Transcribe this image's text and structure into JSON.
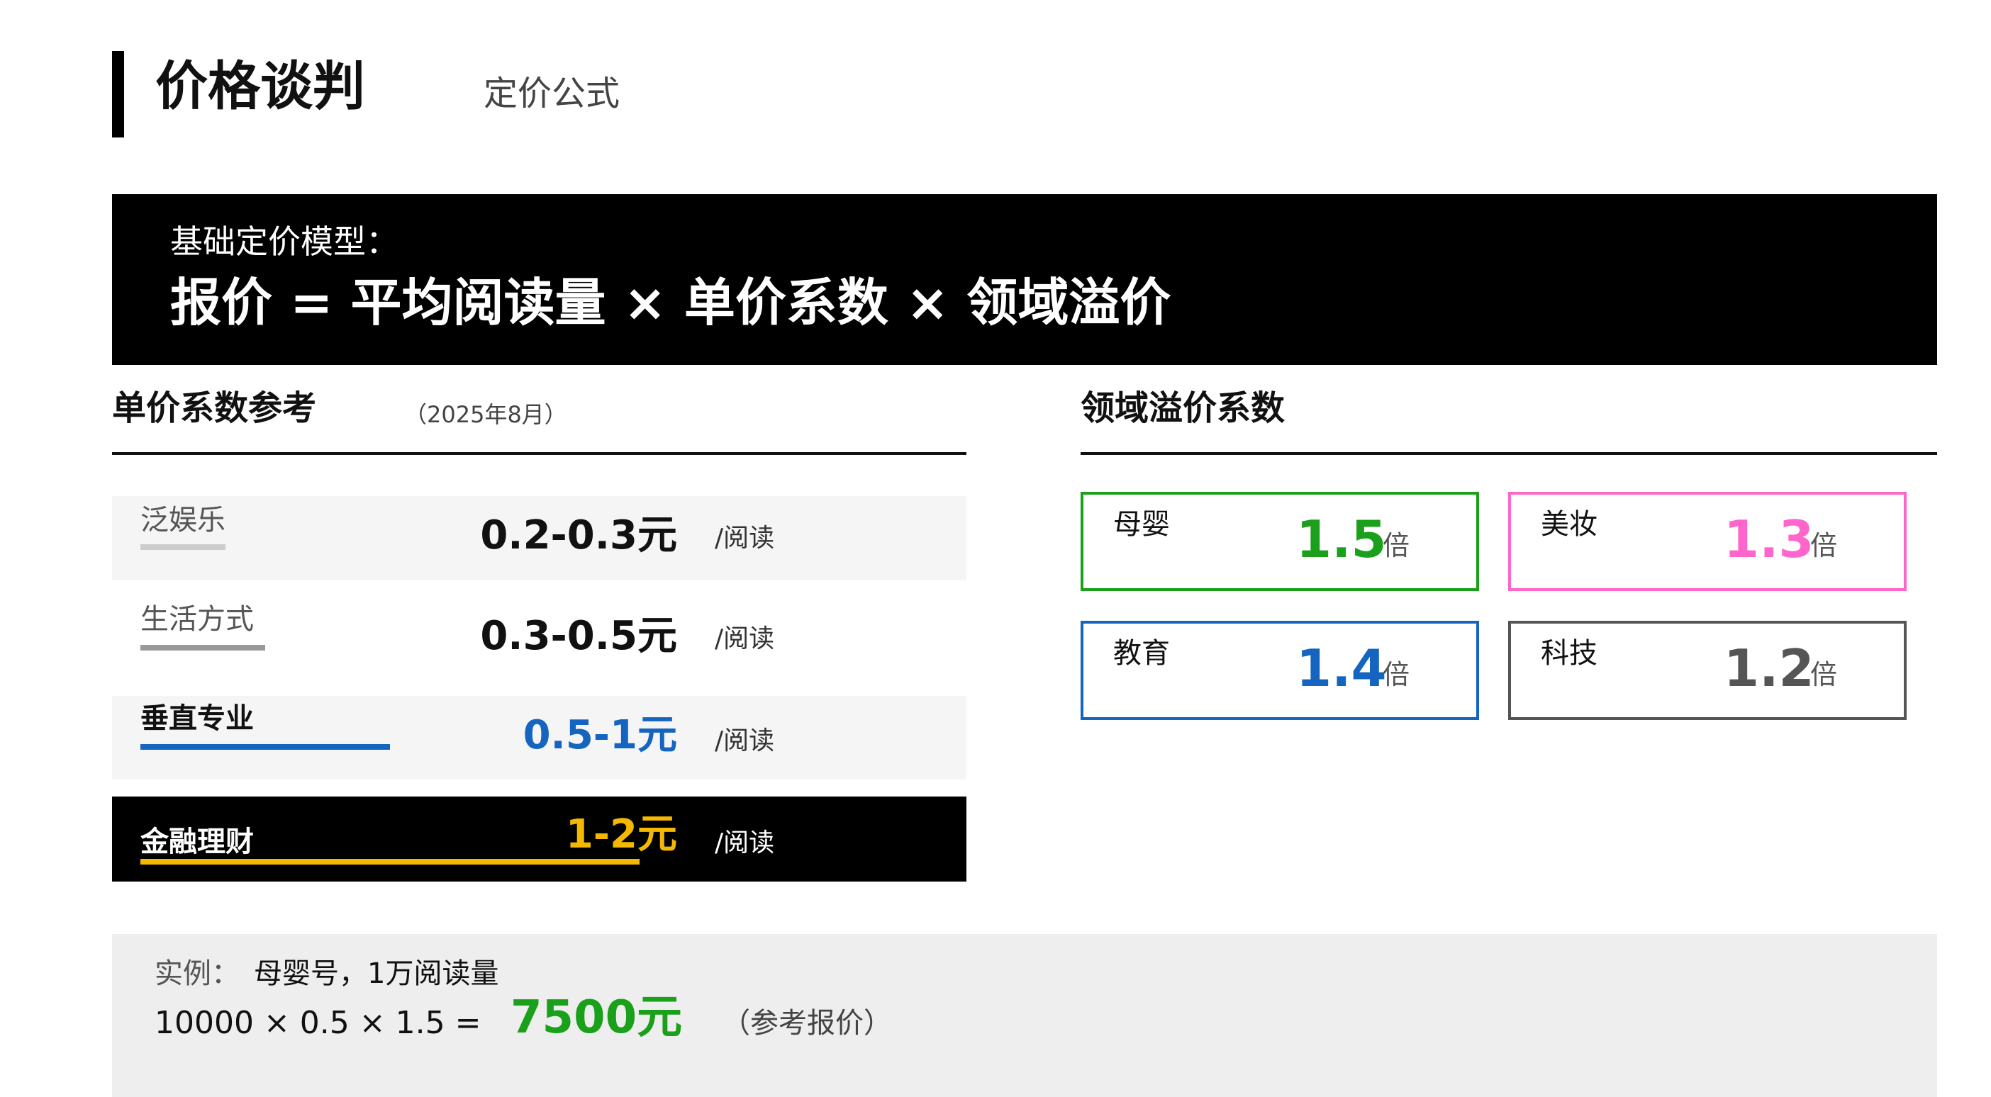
{
  "header": {
    "title": "价格谈判",
    "subtitle": "定价公式"
  },
  "formula": {
    "label": "基础定价模型：",
    "text": "报价 = 平均阅读量 × 单价系数 × 领域溢价"
  },
  "unit_price": {
    "title": "单价系数参考",
    "note": "（2025年8月）",
    "rows": [
      {
        "label": "泛娱乐",
        "price": "0.2-0.3元",
        "unit": "/阅读",
        "bar_color": "#cccccc",
        "bar_fraction": 0.17,
        "price_color": "#111111",
        "bg": "#f5f5f5",
        "label_color": "#555555"
      },
      {
        "label": "生活方式",
        "price": "0.3-0.5元",
        "unit": "/阅读",
        "bar_color": "#999999",
        "bar_fraction": 0.25,
        "price_color": "#111111",
        "bg": "#ffffff",
        "label_color": "#555555"
      },
      {
        "label": "垂直专业",
        "price": "0.5-1元",
        "unit": "/阅读",
        "bar_color": "#1565c0",
        "bar_fraction": 0.5,
        "price_color": "#1565c0",
        "bg": "#f5f5f5",
        "label_color": "#111111"
      },
      {
        "label": "金融理财",
        "price": "1-2元",
        "unit": "/阅读",
        "bar_color": "#f5b800",
        "bar_fraction": 1.0,
        "price_color": "#f5b800",
        "bg": "#000000",
        "label_color": "#ffffff"
      }
    ]
  },
  "premium": {
    "title": "领域溢价系数",
    "cards": [
      {
        "name": "母婴",
        "value": "1.5",
        "unit": "倍",
        "color": "#1aa01a"
      },
      {
        "name": "美妆",
        "value": "1.3",
        "unit": "倍",
        "color": "#ff66cc"
      },
      {
        "name": "教育",
        "value": "1.4",
        "unit": "倍",
        "color": "#1565c0"
      },
      {
        "name": "科技",
        "value": "1.2",
        "unit": "倍",
        "color": "#555555"
      }
    ]
  },
  "example": {
    "label": "实例：",
    "desc": "母婴号，1万阅读量",
    "calc": "10000 × 0.5 × 1.5 =",
    "result": "7500元",
    "note": "（参考报价）",
    "result_color": "#1aa01a"
  }
}
